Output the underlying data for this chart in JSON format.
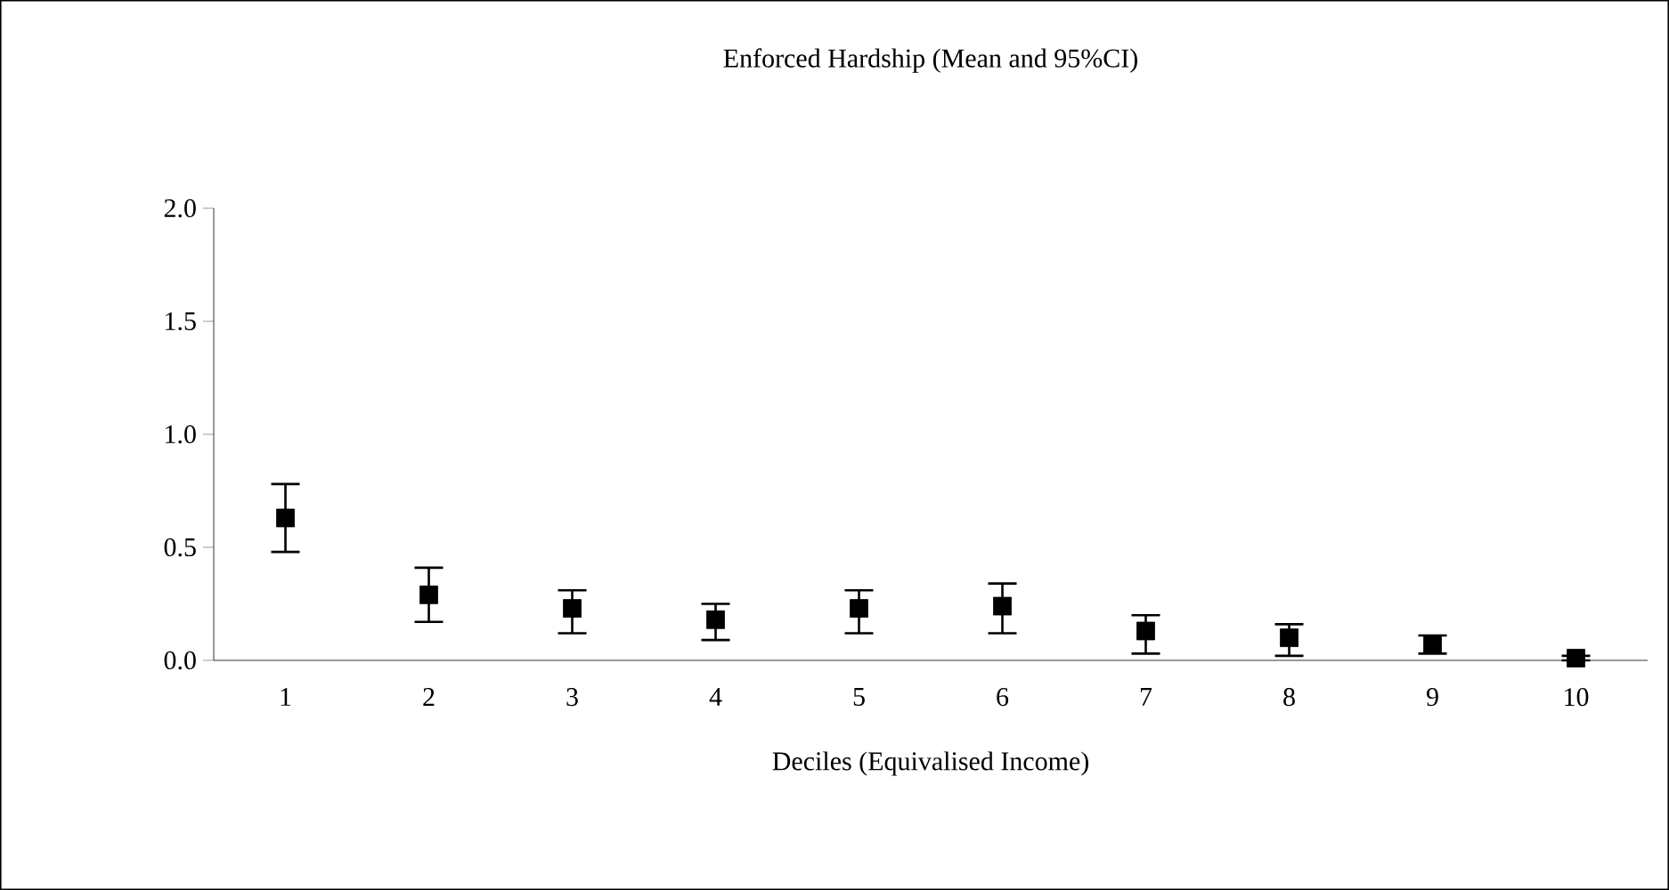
{
  "chart_data": {
    "type": "scatter",
    "title": "Enforced Hardship (Mean and 95%CI)",
    "xlabel": "Deciles (Equivalised Income)",
    "categories": [
      "1",
      "2",
      "3",
      "4",
      "5",
      "6",
      "7",
      "8",
      "9",
      "10"
    ],
    "series": [
      {
        "color": "#000000",
        "values": [
          0.63,
          0.29,
          0.23,
          0.18,
          0.23,
          0.24,
          0.13,
          0.1,
          0.07,
          0.01
        ],
        "errors": [
          [
            0.48,
            0.78
          ],
          [
            0.17,
            0.41
          ],
          [
            0.12,
            0.31
          ],
          [
            0.09,
            0.25
          ],
          [
            0.12,
            0.31
          ],
          [
            0.12,
            0.34
          ],
          [
            0.03,
            0.2
          ],
          [
            0.02,
            0.16
          ],
          [
            0.03,
            0.11
          ],
          [
            0.0,
            0.02
          ]
        ]
      }
    ],
    "ylim": [
      0,
      2.0
    ],
    "yticks": [
      {
        "value": 0,
        "label": "0.0"
      },
      {
        "value": 0.5,
        "label": "0.5"
      },
      {
        "value": 1.0,
        "label": "1.0"
      },
      {
        "value": 1.5,
        "label": "1.5"
      },
      {
        "value": 2.0,
        "label": "2.0"
      }
    ],
    "marker": "square"
  }
}
